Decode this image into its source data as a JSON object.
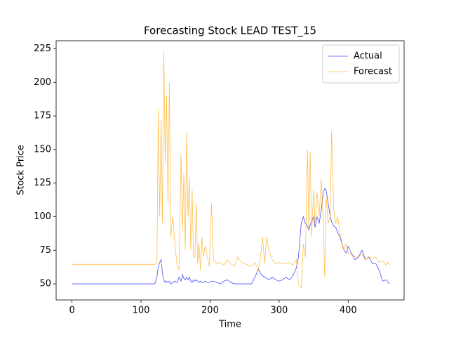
{
  "chart_data": {
    "type": "line",
    "title": "Forecasting Stock LEAD TEST_15",
    "x_label": "Time",
    "y_label": "Stock Price",
    "x": [
      0,
      120,
      123,
      125,
      127,
      129,
      131,
      133,
      135,
      137,
      139,
      141,
      143,
      146,
      149,
      152,
      155,
      158,
      160,
      162,
      164,
      166,
      168,
      170,
      172,
      174,
      176,
      178,
      180,
      182,
      184,
      186,
      188,
      190,
      193,
      196,
      199,
      202,
      205,
      210,
      215,
      220,
      225,
      230,
      235,
      240,
      245,
      250,
      255,
      260,
      265,
      270,
      273,
      276,
      279,
      282,
      285,
      290,
      295,
      300,
      305,
      310,
      315,
      320,
      325,
      328,
      332,
      335,
      338,
      341,
      343,
      345,
      347,
      350,
      352,
      355,
      358,
      361,
      364,
      366,
      368,
      371,
      374,
      376,
      379,
      382,
      385,
      388,
      391,
      394,
      397,
      400,
      405,
      410,
      415,
      420,
      425,
      430,
      435,
      440,
      445,
      450,
      455,
      458,
      460
    ],
    "series": [
      {
        "name": "Actual",
        "color": "blue",
        "values": [
          50,
          50,
          55,
          63,
          66,
          68,
          58,
          53,
          51,
          52,
          51,
          52,
          50,
          51,
          52,
          51,
          55,
          52,
          57,
          54,
          53,
          55,
          53,
          55,
          52,
          51,
          53,
          52,
          53,
          52,
          51,
          52,
          51,
          51,
          52,
          51,
          51,
          52,
          52,
          51,
          50,
          52,
          53,
          51,
          50,
          50,
          50,
          50,
          50,
          50,
          55,
          61,
          58,
          56,
          55,
          54,
          53,
          55,
          53,
          52,
          53,
          55,
          53,
          56,
          62,
          70,
          95,
          100,
          95,
          93,
          90,
          94,
          96,
          100,
          92,
          100,
          95,
          105,
          118,
          121,
          120,
          110,
          100,
          96,
          93,
          92,
          88,
          85,
          80,
          75,
          73,
          78,
          72,
          68,
          70,
          75,
          68,
          70,
          65,
          65,
          60,
          52,
          53,
          51,
          50
        ]
      },
      {
        "name": "Forecast",
        "color": "orange",
        "values": [
          64.5,
          64.5,
          65,
          180,
          100,
          172,
          95,
          223,
          140,
          190,
          110,
          200,
          85,
          100,
          80,
          65,
          60,
          147,
          90,
          132,
          75,
          162,
          100,
          130,
          75,
          120,
          70,
          70,
          110,
          65,
          80,
          60,
          85,
          70,
          78,
          70,
          63,
          110,
          68,
          65,
          66,
          64,
          68,
          65,
          63,
          70,
          66,
          65,
          64,
          63,
          66,
          60,
          70,
          85,
          65,
          85,
          75,
          68,
          65,
          66,
          65,
          65,
          66,
          64,
          68,
          50,
          47,
          80,
          70,
          150,
          90,
          148,
          85,
          120,
          95,
          118,
          100,
          128,
          95,
          55,
          115,
          95,
          100,
          164,
          105,
          95,
          100,
          88,
          80,
          75,
          80,
          72,
          73,
          70,
          70,
          72,
          68,
          70,
          69,
          70,
          66,
          67,
          64,
          66,
          64
        ]
      }
    ],
    "xlim": [
      -23,
      481
    ],
    "ylim": [
      38,
      231
    ],
    "xticks": [
      0,
      100,
      200,
      300,
      400
    ],
    "yticks": [
      50,
      75,
      100,
      125,
      150,
      175,
      200,
      225
    ],
    "legend": "upper right"
  }
}
